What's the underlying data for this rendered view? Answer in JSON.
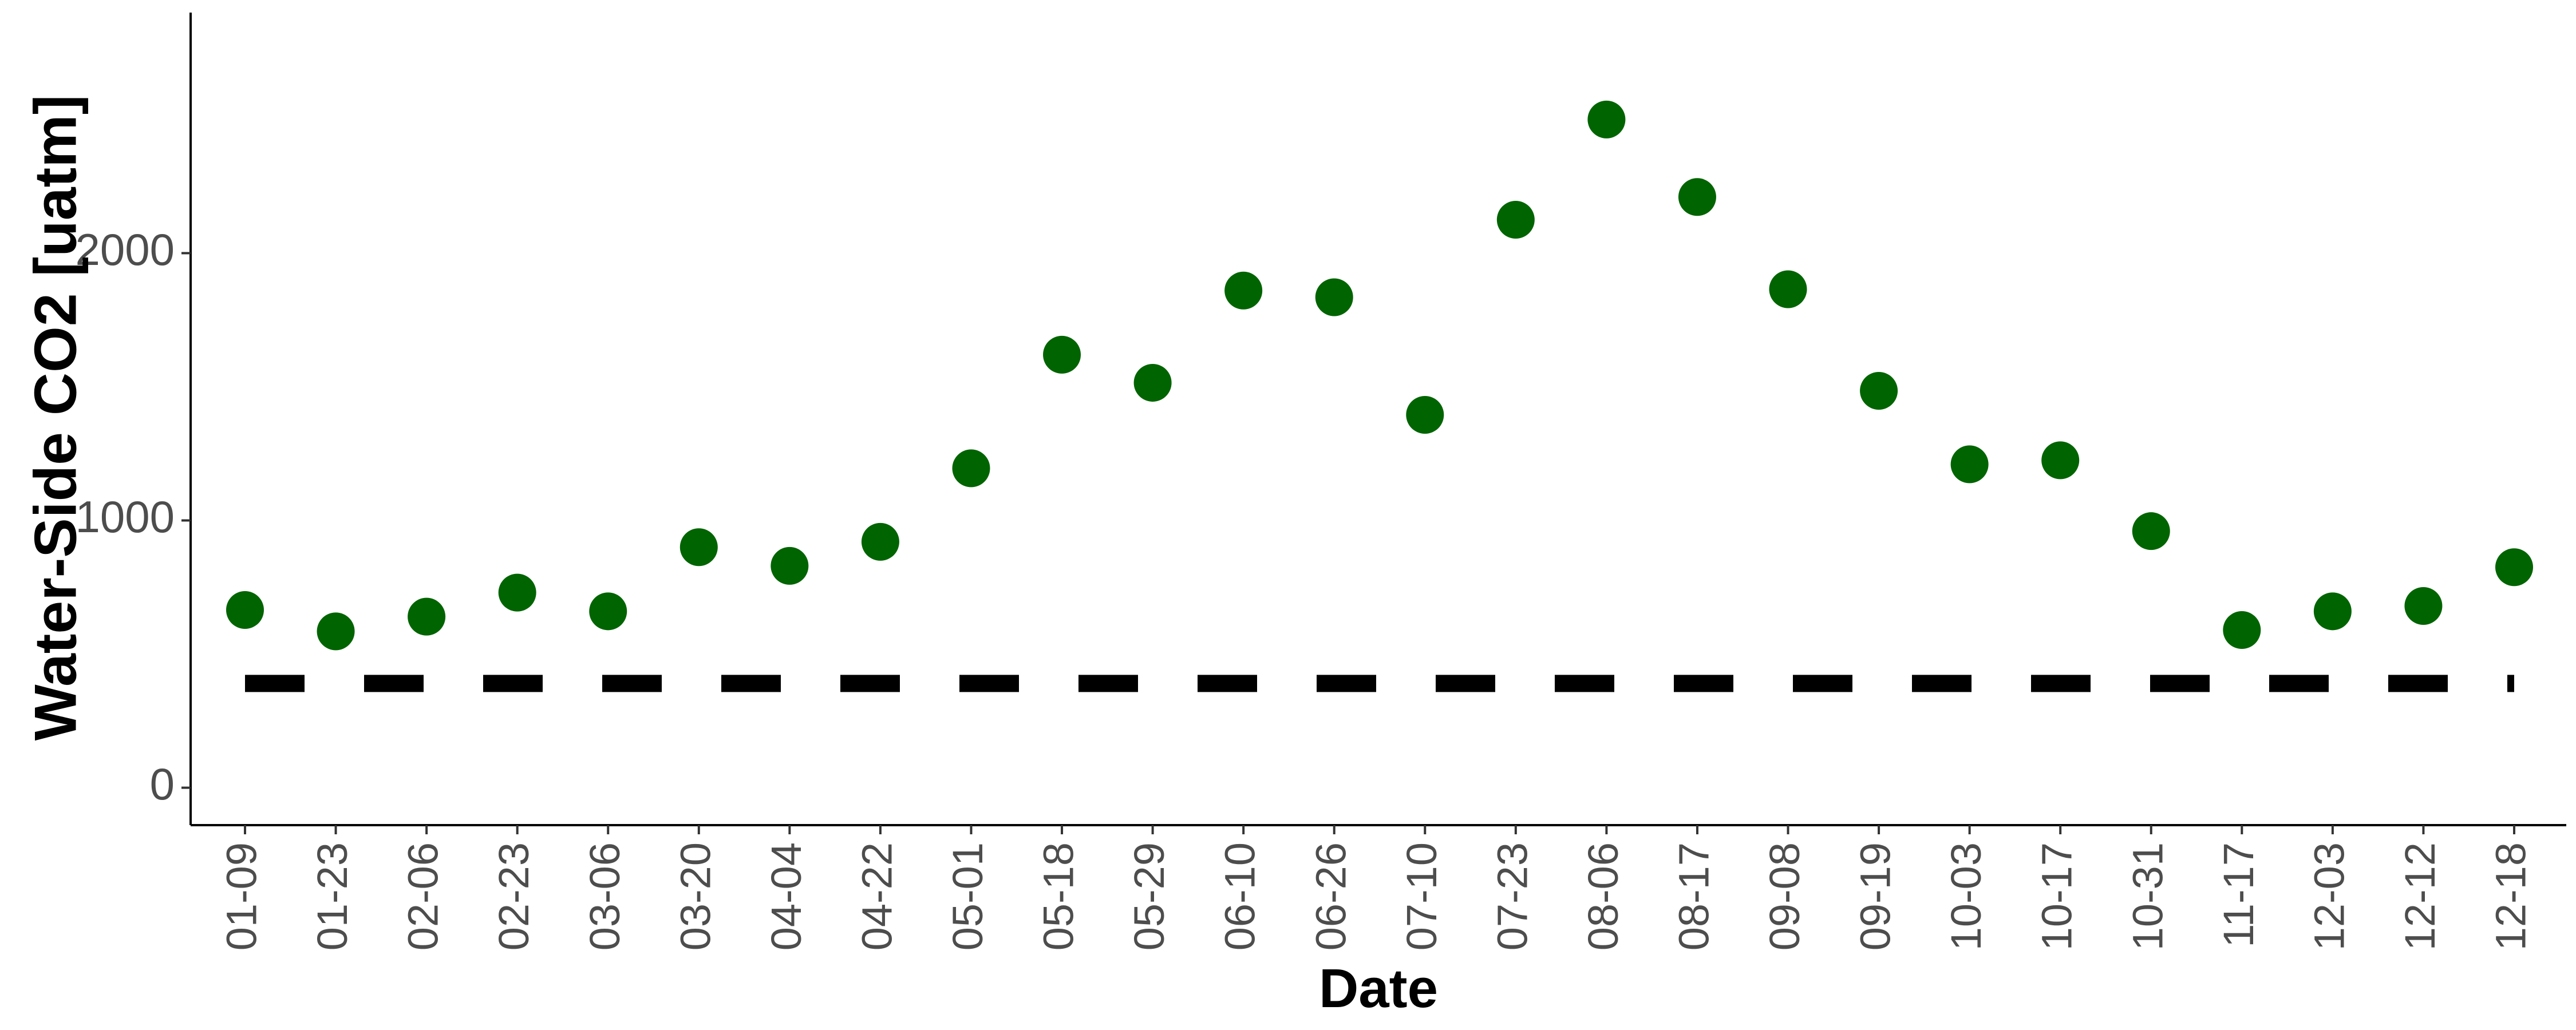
{
  "chart_data": {
    "type": "scatter",
    "xlabel": "Date",
    "ylabel": "Water-Side CO2 [uatm]",
    "categories": [
      "01-09",
      "01-23",
      "02-06",
      "02-23",
      "03-06",
      "03-20",
      "04-04",
      "04-22",
      "05-01",
      "05-18",
      "05-29",
      "06-10",
      "06-26",
      "07-10",
      "07-23",
      "08-06",
      "08-17",
      "09-08",
      "09-19",
      "10-03",
      "10-17",
      "10-31",
      "11-17",
      "12-03",
      "12-12",
      "12-18"
    ],
    "values": [
      665,
      585,
      640,
      730,
      660,
      900,
      830,
      920,
      1195,
      1620,
      1515,
      1860,
      1835,
      1395,
      2125,
      2500,
      2210,
      1865,
      1485,
      1210,
      1225,
      960,
      590,
      660,
      680,
      825
    ],
    "yticks": [
      0,
      1000,
      2000
    ],
    "ylim": [
      -140,
      2900
    ],
    "reference_line": {
      "value": 390,
      "style": "dashed"
    },
    "point_color": "#006400",
    "line_color": "#000000",
    "grid": false,
    "legend": "none"
  }
}
